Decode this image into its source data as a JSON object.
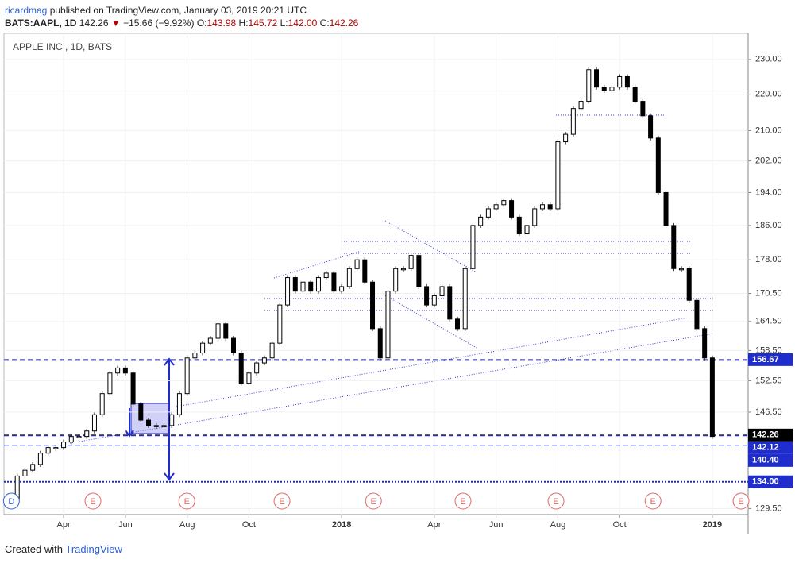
{
  "header": {
    "user": "ricardmag",
    "published": "published on TradingView.com, January 03, 2019 20:21 UTC",
    "symbol": "BATS:AAPL, 1D",
    "last": "142.26",
    "arrow": "▼",
    "change": "−15.66 (−9.92%)",
    "ohlc": [
      {
        "key": "O:",
        "value": "143.98"
      },
      {
        "key": "H:",
        "value": "145.72"
      },
      {
        "key": "L:",
        "value": "142.00"
      },
      {
        "key": "C:",
        "value": "142.26"
      }
    ]
  },
  "footer": {
    "text": "Created with",
    "brand": "TradingView"
  },
  "chart_data": {
    "type": "candlestick",
    "title": "APPLE INC., 1D, BATS",
    "x": [
      1.25,
      1.5,
      1.75,
      2,
      2.25,
      2.5,
      2.75,
      3,
      3.25,
      3.5,
      3.75,
      4,
      4.25,
      4.5,
      4.75,
      5,
      5.25,
      5.5,
      5.75,
      6,
      6.25,
      6.5,
      6.75,
      7,
      7.25,
      7.5,
      7.75,
      8,
      8.25,
      8.5,
      8.75,
      9,
      9.25,
      9.5,
      9.75,
      10,
      10.25,
      10.5,
      10.75,
      11,
      11.25,
      11.5,
      11.75,
      12,
      12.25,
      12.5,
      12.75,
      13,
      13.25,
      13.5,
      13.75,
      14,
      14.25,
      14.5,
      14.75,
      15,
      15.25,
      15.5,
      15.75,
      16,
      16.25,
      16.5,
      16.75,
      17,
      17.25,
      17.5,
      17.75,
      18,
      18.25,
      18.5,
      18.75,
      19,
      19.25,
      19.5,
      19.75,
      20,
      20.25,
      20.5,
      20.75,
      21,
      21.25,
      21.5,
      21.75,
      22,
      22.25,
      22.5,
      22.75,
      23,
      23.25,
      23.5,
      23.75,
      24
    ],
    "values": [
      131,
      135,
      136,
      137,
      139,
      140,
      140,
      141,
      142,
      142,
      143,
      146,
      150,
      154,
      155,
      154,
      148,
      145,
      144,
      144,
      144,
      146,
      150,
      157,
      158,
      160,
      161,
      164,
      161,
      158,
      152,
      154,
      156,
      157,
      160,
      168,
      174,
      171,
      173,
      171,
      174,
      175,
      171,
      172,
      176,
      178,
      173,
      163,
      157,
      171,
      176,
      176,
      179,
      172,
      168,
      170,
      172,
      165,
      163,
      176,
      186,
      188,
      190,
      191,
      192,
      188,
      184,
      186,
      190,
      191,
      190,
      207,
      209,
      216,
      218,
      227,
      222,
      221,
      222,
      225,
      222,
      218,
      214,
      208,
      194,
      186,
      176,
      176,
      169,
      163,
      157,
      142
    ],
    "color_up": "#ffffff",
    "color_down": "#000000",
    "xlim": [
      1.07,
      25.16
    ],
    "xticks": [
      {
        "value": 3,
        "label": "Apr"
      },
      {
        "value": 5,
        "label": "Jun"
      },
      {
        "value": 7,
        "label": "Aug"
      },
      {
        "value": 9,
        "label": "Oct"
      },
      {
        "value": 12,
        "label": "2018"
      },
      {
        "value": 15,
        "label": "Apr"
      },
      {
        "value": 17,
        "label": "Jun"
      },
      {
        "value": 19,
        "label": "Aug"
      },
      {
        "value": 21,
        "label": "Oct"
      },
      {
        "value": 24,
        "label": "2019"
      }
    ],
    "ylim": [
      128.5,
      237.8
    ],
    "log_scale": true,
    "yticks": [
      {
        "value": 230,
        "label": "230.00"
      },
      {
        "value": 220,
        "label": "220.00"
      },
      {
        "value": 210,
        "label": "210.00"
      },
      {
        "value": 202,
        "label": "202.00"
      },
      {
        "value": 194,
        "label": "194.00"
      },
      {
        "value": 186,
        "label": "186.00"
      },
      {
        "value": 178,
        "label": "178.00"
      },
      {
        "value": 170.5,
        "label": "170.50"
      },
      {
        "value": 164.5,
        "label": "164.50"
      },
      {
        "value": 158.5,
        "label": "158.50"
      },
      {
        "value": 152.5,
        "label": "152.50"
      },
      {
        "value": 146.5,
        "label": "146.50"
      },
      {
        "value": 129.5,
        "label": "129.50"
      }
    ],
    "price_levels": [
      156.67,
      142.26,
      142.12,
      {
        "value": 140.4,
        "label": "140.40"
      },
      {
        "value": 134,
        "label": "134.00"
      }
    ],
    "level_colors": [
      "#1f2dcc",
      "#000000",
      "#1f2dcc",
      "#1f2dcc",
      "#1f2dcc"
    ],
    "events": {
      "x": [
        1.31,
        3.95,
        6.99,
        10.07,
        13.03,
        15.93,
        18.94,
        22.08,
        24.93
      ],
      "labels": [
        "D",
        "E",
        "E",
        "E",
        "E",
        "E",
        "E",
        "E",
        "E"
      ]
    }
  }
}
